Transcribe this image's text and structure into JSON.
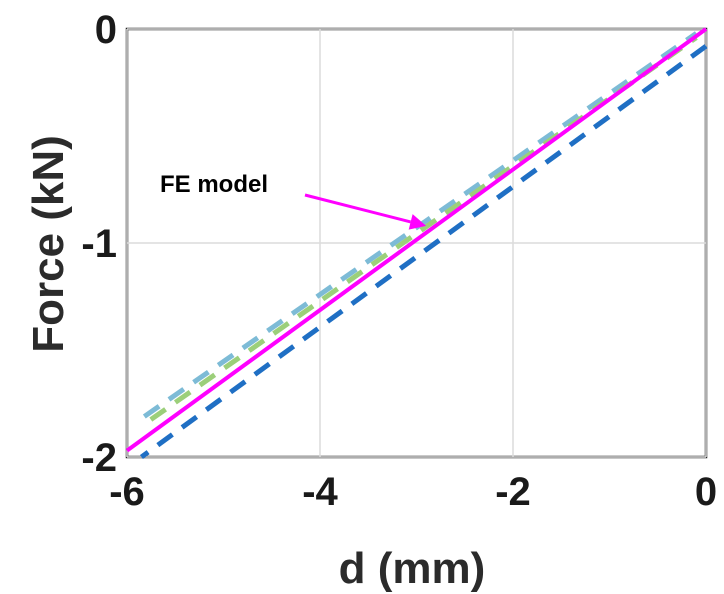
{
  "chart_data": {
    "type": "line",
    "xlabel": "d (mm)",
    "ylabel": "Force  (kN)",
    "xlim": [
      -6,
      0
    ],
    "ylim": [
      -2,
      0
    ],
    "xticks": [
      "-6",
      "-4",
      "-2",
      "0"
    ],
    "xtick_values": [
      -6,
      -4,
      -2,
      0
    ],
    "yticks": [
      "0",
      "-1",
      "-2"
    ],
    "ytick_values": [
      0,
      -1,
      -2
    ],
    "grid": true,
    "annotation": {
      "text": "FE model",
      "points_to": {
        "x": -2.9,
        "y": -0.92
      }
    },
    "series": [
      {
        "color": "#ff00ff",
        "style": "solid",
        "x": [
          0,
          -6
        ],
        "y": [
          0,
          -1.97
        ]
      },
      {
        "color": "#1f6fc4",
        "style": "dashed",
        "x": [
          0,
          -5.85
        ],
        "y": [
          -0.08,
          -2.0
        ]
      },
      {
        "color": "#7dbbd6",
        "style": "dashed",
        "x": [
          -0.1,
          -5.85
        ],
        "y": [
          -0.02,
          -1.82
        ]
      },
      {
        "color": "#9ccf7a",
        "style": "dashed",
        "x": [
          -0.1,
          -5.8
        ],
        "y": [
          -0.04,
          -1.84
        ]
      }
    ]
  }
}
